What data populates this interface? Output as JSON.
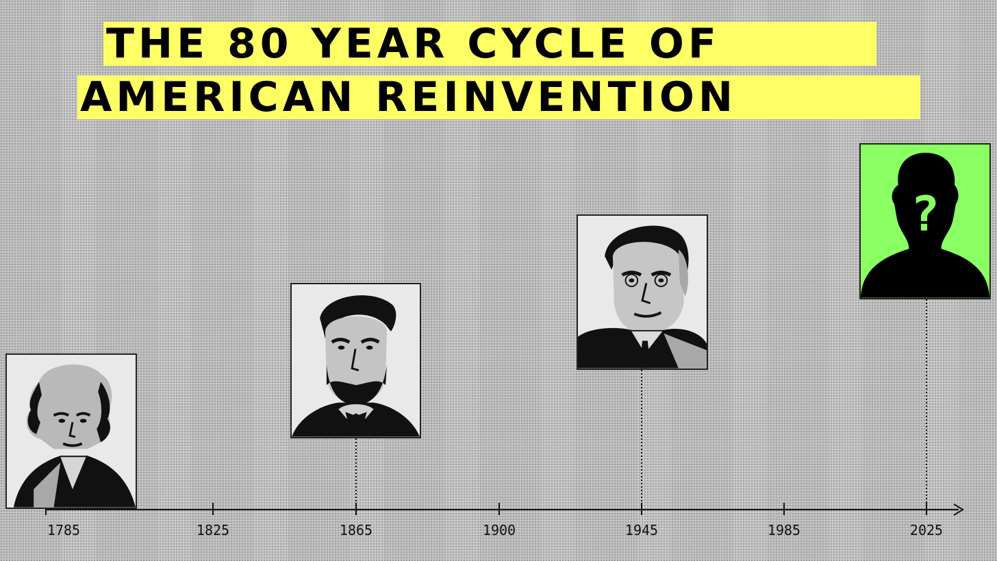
{
  "title": {
    "line1": "THE 80 YEAR CYCLE OF",
    "line2": "AMERICAN REINVENTION"
  },
  "timeline": {
    "years": [
      "1785",
      "1825",
      "1865",
      "1900",
      "1945",
      "1985",
      "2025"
    ]
  },
  "portraits": [
    {
      "year": "1785",
      "icon": "washington-portrait-icon"
    },
    {
      "year": "1865",
      "icon": "lincoln-portrait-icon"
    },
    {
      "year": "1945",
      "icon": "roosevelt-portrait-icon"
    },
    {
      "year": "2025",
      "icon": "unknown-silhouette-icon",
      "mark": "?"
    }
  ],
  "colors": {
    "background": "#c2c2c2",
    "title_highlight": "#ffff66",
    "unknown_panel": "#8aff64",
    "ink": "#000000"
  }
}
